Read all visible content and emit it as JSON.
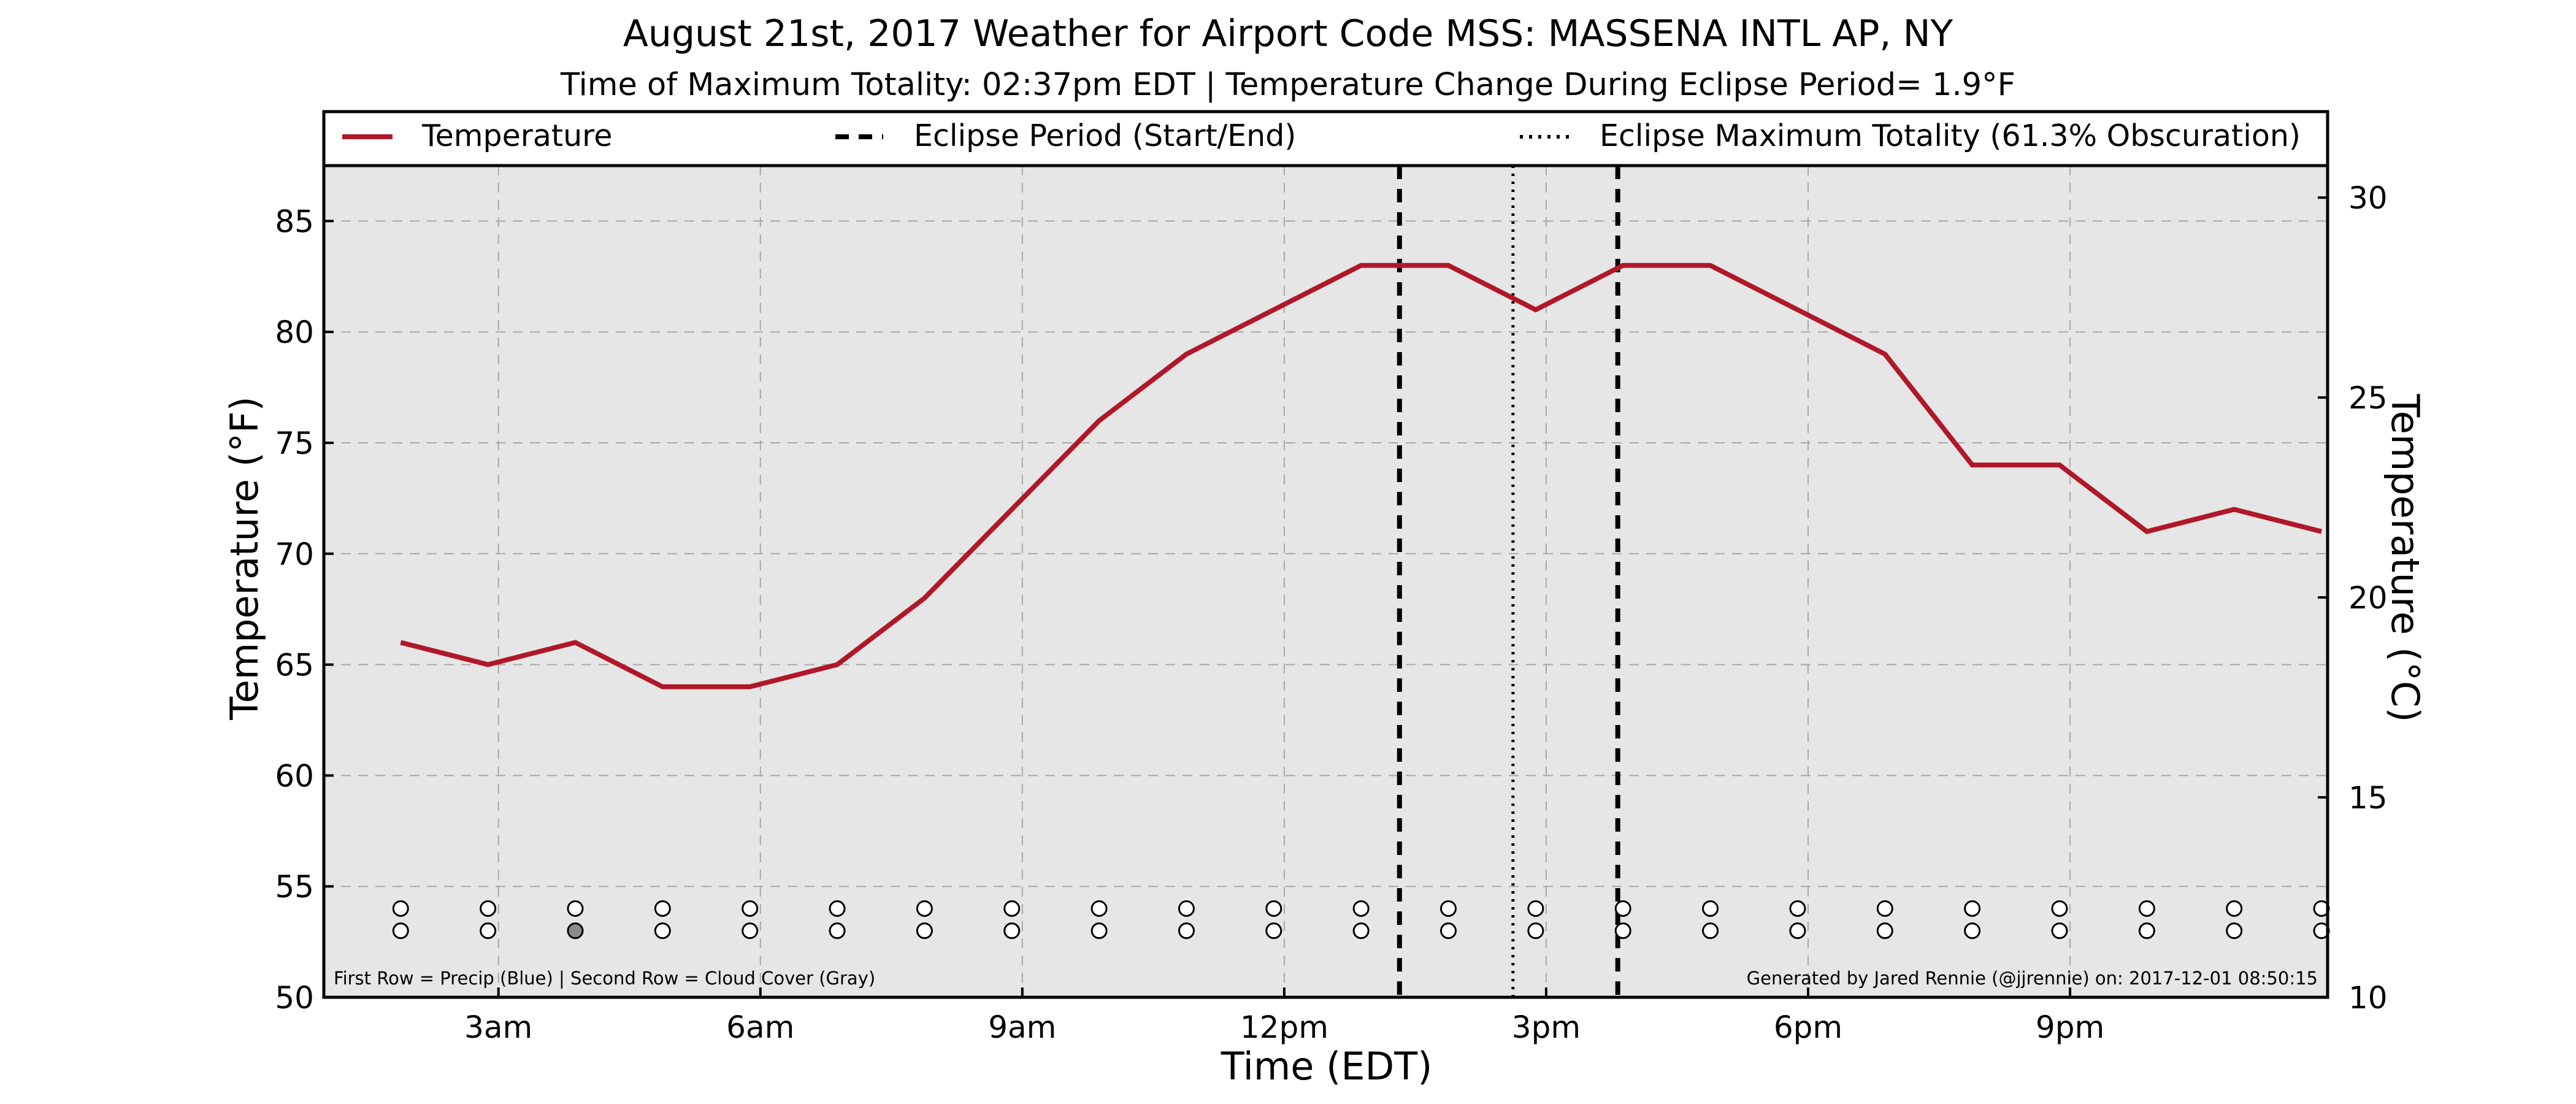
{
  "title": "August 21st, 2017 Weather for Airport Code MSS: MASSENA INTL AP, NY",
  "subtitle": "Time of Maximum Totality: 02:37pm EDT | Temperature Change During Eclipse Period= 1.9°F",
  "legend": {
    "temperature": "Temperature",
    "eclipse_period": "Eclipse Period (Start/End)",
    "eclipse_max": "Eclipse Maximum Totality (61.3% Obscuration)"
  },
  "footer": {
    "left": "First Row = Precip (Blue) | Second Row = Cloud Cover (Gray)",
    "right": "Generated by Jared Rennie (@jjrennie) on: 2017-12-01 08:50:15"
  },
  "colors": {
    "temperature_line": "#b0182a",
    "plot_background": "#e6e6e6",
    "grid": "#a8a8a8",
    "cloud_fill": "#8c8c8c"
  },
  "chart_data": {
    "type": "line",
    "xlabel": "Time (EDT)",
    "ylabel": "Temperature (°F)",
    "ylabel_right": "Temperature (°C)",
    "xlim": [
      1.0,
      23.95
    ],
    "ylim": [
      50,
      87.5
    ],
    "ylim_right": [
      10,
      30.8
    ],
    "x_ticks": [
      {
        "x": 3,
        "label": "3am"
      },
      {
        "x": 6,
        "label": "6am"
      },
      {
        "x": 9,
        "label": "9am"
      },
      {
        "x": 12,
        "label": "12pm"
      },
      {
        "x": 15,
        "label": "3pm"
      },
      {
        "x": 18,
        "label": "6pm"
      },
      {
        "x": 21,
        "label": "9pm"
      }
    ],
    "y_ticks": [
      50,
      55,
      60,
      65,
      70,
      75,
      80,
      85
    ],
    "y_ticks_right": [
      10,
      15,
      20,
      25,
      30
    ],
    "grid": true,
    "series": [
      {
        "name": "Temperature",
        "x": [
          1.88,
          2.88,
          3.88,
          4.88,
          5.88,
          6.88,
          7.88,
          8.88,
          9.88,
          10.88,
          11.88,
          12.88,
          13.88,
          14.88,
          15.88,
          16.88,
          17.88,
          18.88,
          19.88,
          20.88,
          21.88,
          22.88,
          23.88
        ],
        "y": [
          66,
          65,
          66,
          64,
          64,
          65,
          68,
          72,
          76,
          79,
          81,
          83,
          83,
          81,
          83,
          83,
          81,
          79,
          74,
          74,
          71,
          72,
          71
        ]
      }
    ],
    "eclipse_start": 13.32,
    "eclipse_end": 15.82,
    "eclipse_max": 14.62,
    "precip_row_y": 54,
    "cloud_row_y": 53,
    "cloud_filled_index": 2
  }
}
